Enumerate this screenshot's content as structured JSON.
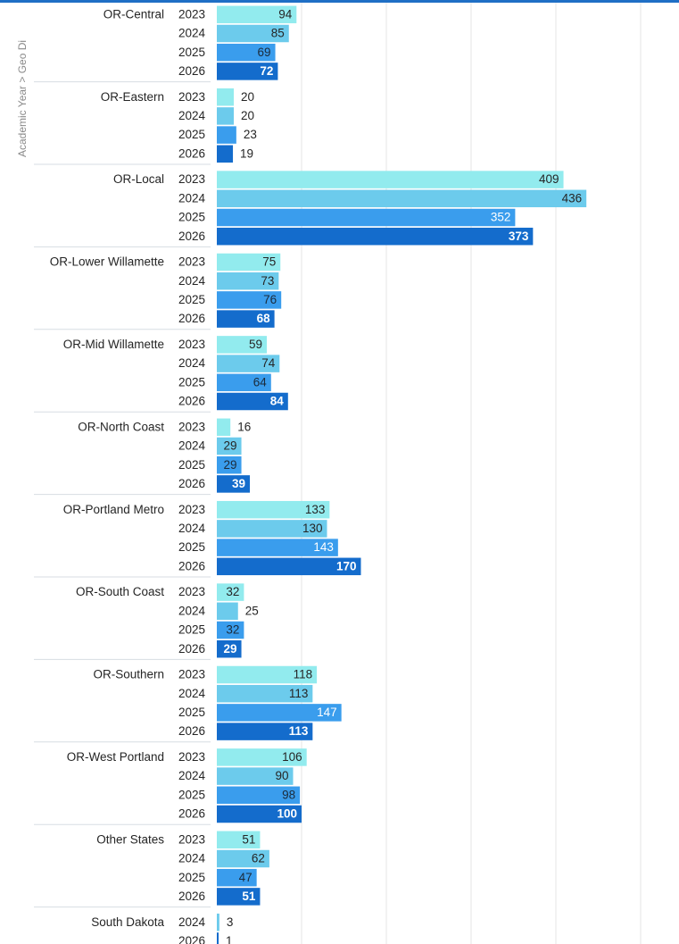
{
  "axis": {
    "title": "Academic Year  >  Geo Di"
  },
  "colors": {
    "top_bar": "#1f6fc5",
    "2023": "#92ebee",
    "2024": "#6ccbec",
    "2025": "#3a9ded",
    "2026": "#146ccc"
  },
  "chart_data": {
    "type": "bar",
    "orientation": "horizontal",
    "grouping": [
      "Geo Di",
      "Academic Year"
    ],
    "grid": true,
    "groups": [
      {
        "region": "OR-Central",
        "bars": [
          {
            "year": "2023",
            "value": 94
          },
          {
            "year": "2024",
            "value": 85
          },
          {
            "year": "2025",
            "value": 69
          },
          {
            "year": "2026",
            "value": 72
          }
        ]
      },
      {
        "region": "OR-Eastern",
        "bars": [
          {
            "year": "2023",
            "value": 20
          },
          {
            "year": "2024",
            "value": 20
          },
          {
            "year": "2025",
            "value": 23
          },
          {
            "year": "2026",
            "value": 19
          }
        ]
      },
      {
        "region": "OR-Local",
        "bars": [
          {
            "year": "2023",
            "value": 409
          },
          {
            "year": "2024",
            "value": 436
          },
          {
            "year": "2025",
            "value": 352
          },
          {
            "year": "2026",
            "value": 373
          }
        ]
      },
      {
        "region": "OR-Lower Willamette",
        "bars": [
          {
            "year": "2023",
            "value": 75
          },
          {
            "year": "2024",
            "value": 73
          },
          {
            "year": "2025",
            "value": 76
          },
          {
            "year": "2026",
            "value": 68
          }
        ]
      },
      {
        "region": "OR-Mid Willamette",
        "bars": [
          {
            "year": "2023",
            "value": 59
          },
          {
            "year": "2024",
            "value": 74
          },
          {
            "year": "2025",
            "value": 64
          },
          {
            "year": "2026",
            "value": 84
          }
        ]
      },
      {
        "region": "OR-North Coast",
        "bars": [
          {
            "year": "2023",
            "value": 16
          },
          {
            "year": "2024",
            "value": 29
          },
          {
            "year": "2025",
            "value": 29
          },
          {
            "year": "2026",
            "value": 39
          }
        ]
      },
      {
        "region": "OR-Portland Metro",
        "bars": [
          {
            "year": "2023",
            "value": 133
          },
          {
            "year": "2024",
            "value": 130
          },
          {
            "year": "2025",
            "value": 143
          },
          {
            "year": "2026",
            "value": 170
          }
        ]
      },
      {
        "region": "OR-South Coast",
        "bars": [
          {
            "year": "2023",
            "value": 32
          },
          {
            "year": "2024",
            "value": 25
          },
          {
            "year": "2025",
            "value": 32
          },
          {
            "year": "2026",
            "value": 29
          }
        ]
      },
      {
        "region": "OR-Southern",
        "bars": [
          {
            "year": "2023",
            "value": 118
          },
          {
            "year": "2024",
            "value": 113
          },
          {
            "year": "2025",
            "value": 147
          },
          {
            "year": "2026",
            "value": 113
          }
        ]
      },
      {
        "region": "OR-West Portland",
        "bars": [
          {
            "year": "2023",
            "value": 106
          },
          {
            "year": "2024",
            "value": 90
          },
          {
            "year": "2025",
            "value": 98
          },
          {
            "year": "2026",
            "value": 100
          }
        ]
      },
      {
        "region": "Other States",
        "bars": [
          {
            "year": "2023",
            "value": 51
          },
          {
            "year": "2024",
            "value": 62
          },
          {
            "year": "2025",
            "value": 47
          },
          {
            "year": "2026",
            "value": 51
          }
        ]
      },
      {
        "region": "South Dakota",
        "bars": [
          {
            "year": "2024",
            "value": 3
          },
          {
            "year": "2026",
            "value": 1
          }
        ]
      }
    ]
  }
}
